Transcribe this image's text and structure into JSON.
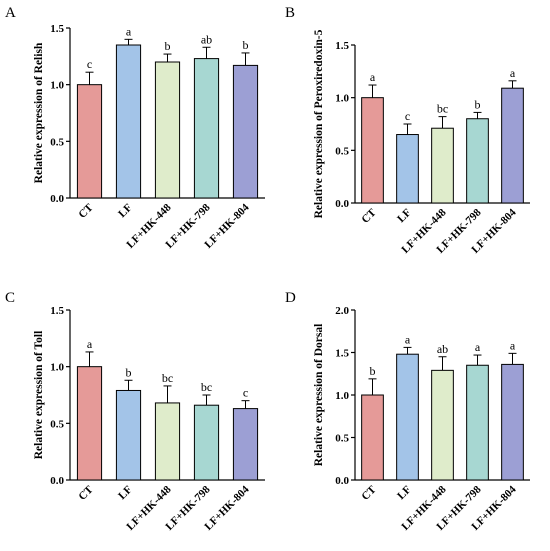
{
  "categories": [
    "CT",
    "LF",
    "LF+HK-448",
    "LF+HK-798",
    "LF+HK-804"
  ],
  "colors": [
    "#e59a98",
    "#a3c4e8",
    "#dfeccb",
    "#a7d7d2",
    "#9c9fd4"
  ],
  "chart_data": [
    {
      "type": "bar",
      "panel": "A",
      "ylabel": "Relative expression of Relish",
      "categories": [
        "CT",
        "LF",
        "LF+HK-448",
        "LF+HK-798",
        "LF+HK-804"
      ],
      "values": [
        1.0,
        1.35,
        1.2,
        1.23,
        1.17
      ],
      "errors": [
        0.11,
        0.05,
        0.07,
        0.1,
        0.11
      ],
      "labels": [
        "c",
        "a",
        "b",
        "ab",
        "b"
      ],
      "yticks": [
        "0.0",
        "0.5",
        "1.0",
        "1.5"
      ],
      "ylim": [
        0,
        1.5
      ]
    },
    {
      "type": "bar",
      "panel": "B",
      "ylabel": "Relative expression of Peroxiredoxin-5",
      "categories": [
        "CT",
        "LF",
        "LF+HK-448",
        "LF+HK-798",
        "LF+HK-804"
      ],
      "values": [
        1.0,
        0.65,
        0.71,
        0.8,
        1.09
      ],
      "errors": [
        0.12,
        0.1,
        0.11,
        0.06,
        0.07
      ],
      "labels": [
        "a",
        "c",
        "bc",
        "b",
        "a"
      ],
      "yticks": [
        "0.0",
        "0.5",
        "1.0",
        "1.5"
      ],
      "ylim": [
        0,
        1.5
      ]
    },
    {
      "type": "bar",
      "panel": "C",
      "ylabel": "Relative expression of Toll",
      "categories": [
        "CT",
        "LF",
        "LF+HK-448",
        "LF+HK-798",
        "LF+HK-804"
      ],
      "values": [
        1.0,
        0.79,
        0.68,
        0.66,
        0.63
      ],
      "errors": [
        0.13,
        0.09,
        0.15,
        0.09,
        0.07
      ],
      "labels": [
        "a",
        "b",
        "bc",
        "bc",
        "c"
      ],
      "yticks": [
        "0.0",
        "0.5",
        "1.0",
        "1.5"
      ],
      "ylim": [
        0,
        1.5
      ]
    },
    {
      "type": "bar",
      "panel": "D",
      "ylabel": "Relative expression of Dorsal",
      "categories": [
        "CT",
        "LF",
        "LF+HK-448",
        "LF+HK-798",
        "LF+HK-804"
      ],
      "values": [
        1.0,
        1.48,
        1.29,
        1.35,
        1.36
      ],
      "errors": [
        0.19,
        0.08,
        0.16,
        0.12,
        0.13
      ],
      "labels": [
        "b",
        "a",
        "ab",
        "a",
        "a"
      ],
      "yticks": [
        "0.0",
        "0.5",
        "1.0",
        "1.5",
        "2.0"
      ],
      "ylim": [
        0,
        2.0
      ]
    }
  ]
}
